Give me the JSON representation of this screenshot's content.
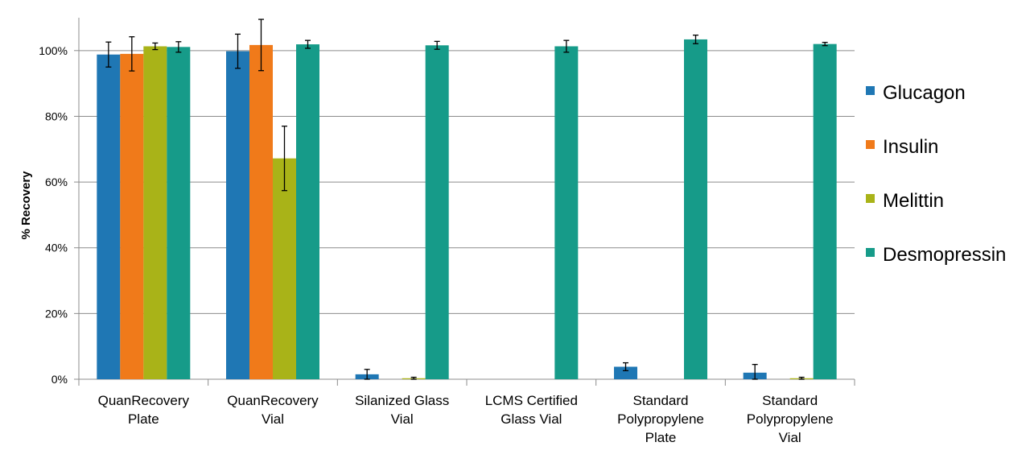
{
  "chart_data": {
    "type": "bar",
    "title": "",
    "xlabel": "",
    "ylabel": "% Recovery",
    "ylim": [
      0,
      110
    ],
    "yticks": [
      0,
      20,
      40,
      60,
      80,
      100
    ],
    "ytick_labels": [
      "0%",
      "20%",
      "40%",
      "60%",
      "80%",
      "100%"
    ],
    "grid": "horizontal",
    "legend_position": "right",
    "categories": [
      [
        "QuanRecovery",
        "Plate"
      ],
      [
        "QuanRecovery",
        "Vial"
      ],
      [
        "Silanized Glass",
        "Vial"
      ],
      [
        "LCMS Certified",
        "Glass Vial"
      ],
      [
        "Standard",
        "Polypropylene",
        "Plate"
      ],
      [
        "Standard",
        "Polypropylene",
        "Vial"
      ]
    ],
    "series": [
      {
        "name": "Glucagon",
        "color": "#1F77B4",
        "values": [
          98.8,
          99.8,
          1.5,
          0,
          3.8,
          2.0
        ],
        "errors": [
          3.8,
          5.2,
          1.5,
          0,
          1.2,
          2.5
        ]
      },
      {
        "name": "Insulin",
        "color": "#F07A1A",
        "values": [
          99.0,
          101.7,
          0,
          0,
          0,
          0
        ],
        "errors": [
          5.2,
          7.8,
          0,
          0,
          0,
          0
        ]
      },
      {
        "name": "Melittin",
        "color": "#A9B318",
        "values": [
          101.3,
          67.2,
          0.3,
          0,
          0,
          0.3
        ],
        "errors": [
          1.0,
          9.8,
          0.3,
          0,
          0,
          0.3
        ]
      },
      {
        "name": "Desmopressin",
        "color": "#169B89",
        "values": [
          101.1,
          101.9,
          101.6,
          101.3,
          103.4,
          102.0
        ],
        "errors": [
          1.6,
          1.2,
          1.2,
          1.8,
          1.3,
          0.5
        ]
      }
    ]
  }
}
